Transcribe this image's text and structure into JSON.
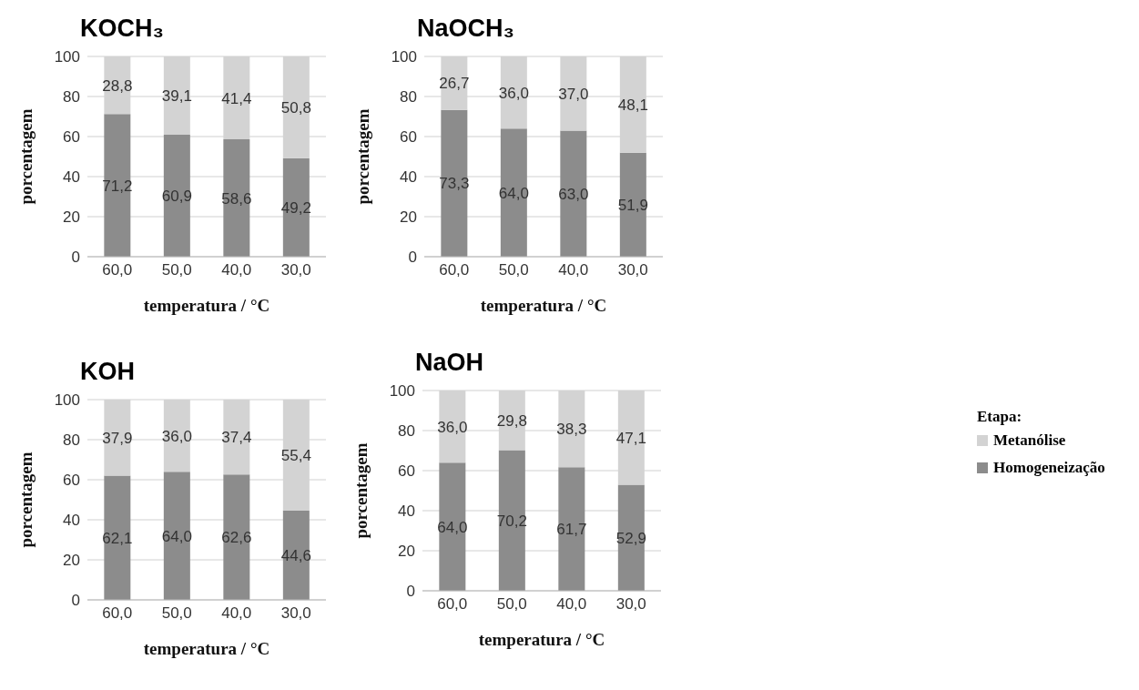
{
  "chart_data": [
    {
      "type": "bar",
      "title": "KOCH₃",
      "xlabel": "temperatura / °C",
      "ylabel": "porcentagem",
      "categories": [
        "60,0",
        "50,0",
        "40,0",
        "30,0"
      ],
      "stacked": true,
      "ylim": [
        0,
        100
      ],
      "yticks": [
        0,
        20,
        40,
        60,
        80,
        100
      ],
      "grid": "y",
      "legend": "right",
      "legend_title": "Etapa:",
      "series": [
        {
          "name": "Homogeneização",
          "color": "#8c8c8c",
          "values": [
            71.2,
            60.9,
            58.6,
            49.2
          ],
          "value_labels": [
            "71,2",
            "60,9",
            "58,6",
            "49,2"
          ]
        },
        {
          "name": "Metanólise",
          "color": "#d3d3d3",
          "values": [
            28.8,
            39.1,
            41.4,
            50.8
          ],
          "value_labels": [
            "28,8",
            "39,1",
            "41,4",
            "50,8"
          ]
        }
      ]
    },
    {
      "type": "bar",
      "title": "NaOCH₃",
      "xlabel": "temperatura / °C",
      "ylabel": "porcentagem",
      "categories": [
        "60,0",
        "50,0",
        "40,0",
        "30,0"
      ],
      "stacked": true,
      "ylim": [
        0,
        100
      ],
      "yticks": [
        0,
        20,
        40,
        60,
        80,
        100
      ],
      "grid": "y",
      "series": [
        {
          "color": "#8c8c8c",
          "values": [
            73.3,
            64.0,
            63.0,
            51.9
          ],
          "value_labels": [
            "73,3",
            "64,0",
            "63,0",
            "51,9"
          ]
        },
        {
          "color": "#d3d3d3",
          "values": [
            26.7,
            36.0,
            37.0,
            48.1
          ],
          "value_labels": [
            "26,7",
            "36,0",
            "37,0",
            "48,1"
          ]
        }
      ]
    },
    {
      "type": "bar",
      "title": "KOH",
      "xlabel": "temperatura / °C",
      "ylabel": "porcentagem",
      "categories": [
        "60,0",
        "50,0",
        "40,0",
        "30,0"
      ],
      "stacked": true,
      "ylim": [
        0,
        100
      ],
      "yticks": [
        0,
        20,
        40,
        60,
        80,
        100
      ],
      "grid": "y",
      "series": [
        {
          "color": "#8c8c8c",
          "values": [
            62.1,
            64.0,
            62.6,
            44.6
          ],
          "value_labels": [
            "62,1",
            "64,0",
            "62,6",
            "44,6"
          ]
        },
        {
          "color": "#d3d3d3",
          "values": [
            37.9,
            36.0,
            37.4,
            55.4
          ],
          "value_labels": [
            "37,9",
            "36,0",
            "37,4",
            "55,4"
          ]
        }
      ]
    },
    {
      "type": "bar",
      "title": "NaOH",
      "xlabel": "temperatura / °C",
      "ylabel": "porcentagem",
      "categories": [
        "60,0",
        "50,0",
        "40,0",
        "30,0"
      ],
      "stacked": true,
      "ylim": [
        0,
        100
      ],
      "yticks": [
        0,
        20,
        40,
        60,
        80,
        100
      ],
      "grid": "y",
      "series": [
        {
          "color": "#8c8c8c",
          "values": [
            64.0,
            70.2,
            61.7,
            52.9
          ],
          "value_labels": [
            "64,0",
            "70,2",
            "61,7",
            "52,9"
          ]
        },
        {
          "color": "#d3d3d3",
          "values": [
            36.0,
            29.8,
            38.3,
            47.1
          ],
          "value_labels": [
            "36,0",
            "29,8",
            "38,3",
            "47,1"
          ]
        }
      ]
    }
  ]
}
